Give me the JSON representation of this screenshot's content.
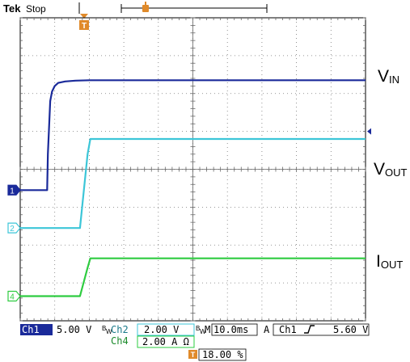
{
  "header": {
    "brand": "Tek",
    "status": "Stop",
    "trigger_marker_glyph": "T"
  },
  "signal_labels": [
    {
      "main": "V",
      "sub": "IN"
    },
    {
      "main": "V",
      "sub": "OUT"
    },
    {
      "main": "I",
      "sub": "OUT"
    }
  ],
  "channel_markers": [
    {
      "label": "1",
      "color": "#1a2a9a",
      "filled": true
    },
    {
      "label": "2",
      "color": "#3cc6d8",
      "filled": false
    },
    {
      "label": "4",
      "color": "#2ecc40",
      "filled": false
    }
  ],
  "readouts": {
    "ch1_label": "Ch1",
    "ch1_value": "5.00 V",
    "ch2_label": "Ch2",
    "ch2_value": "2.00 V",
    "bw_glyph": "B",
    "bw_glyph_sub": "W",
    "timebase_label": "M",
    "timebase_value": "10.0ms",
    "trigger_mode": "A",
    "trigger_source": "Ch1",
    "trigger_slope_icon": "rising-edge-icon",
    "trigger_level": "5.60 V",
    "ch4_label": "Ch4",
    "ch4_value": "2.00 A Ω",
    "trigger_position_glyph": "T",
    "trigger_position": "18.00 %"
  },
  "chart_data": {
    "type": "line",
    "grid": true,
    "grid_divisions": {
      "x": 10,
      "y": 8
    },
    "x_units": "divisions",
    "y_units": "divisions",
    "xlim": [
      0,
      10
    ],
    "ylim": [
      -4,
      4
    ],
    "series": [
      {
        "channel": "1",
        "color": "#1a2a9a",
        "x": [
          0,
          0.78,
          0.8,
          0.87,
          0.92,
          1.0,
          1.1,
          1.3,
          1.6,
          2.0,
          10
        ],
        "y": [
          -0.55,
          -0.55,
          0.4,
          1.8,
          2.05,
          2.2,
          2.28,
          2.32,
          2.34,
          2.35,
          2.35
        ]
      },
      {
        "channel": "2",
        "color": "#3cc6d8",
        "x": [
          0,
          1.73,
          1.95,
          2.03,
          10
        ],
        "y": [
          -1.55,
          -1.55,
          0.4,
          0.8,
          0.8
        ]
      },
      {
        "channel": "4",
        "color": "#2ecc40",
        "x": [
          0,
          1.73,
          1.95,
          2.03,
          10
        ],
        "y": [
          -3.35,
          -3.35,
          -2.6,
          -2.35,
          -2.35
        ]
      }
    ],
    "ch1_ground_level": -0.55,
    "ch2_ground_level": -1.55,
    "ch4_ground_level": -3.35,
    "ch1_trigger_level": 1.0,
    "trigger_time": 0.8
  }
}
